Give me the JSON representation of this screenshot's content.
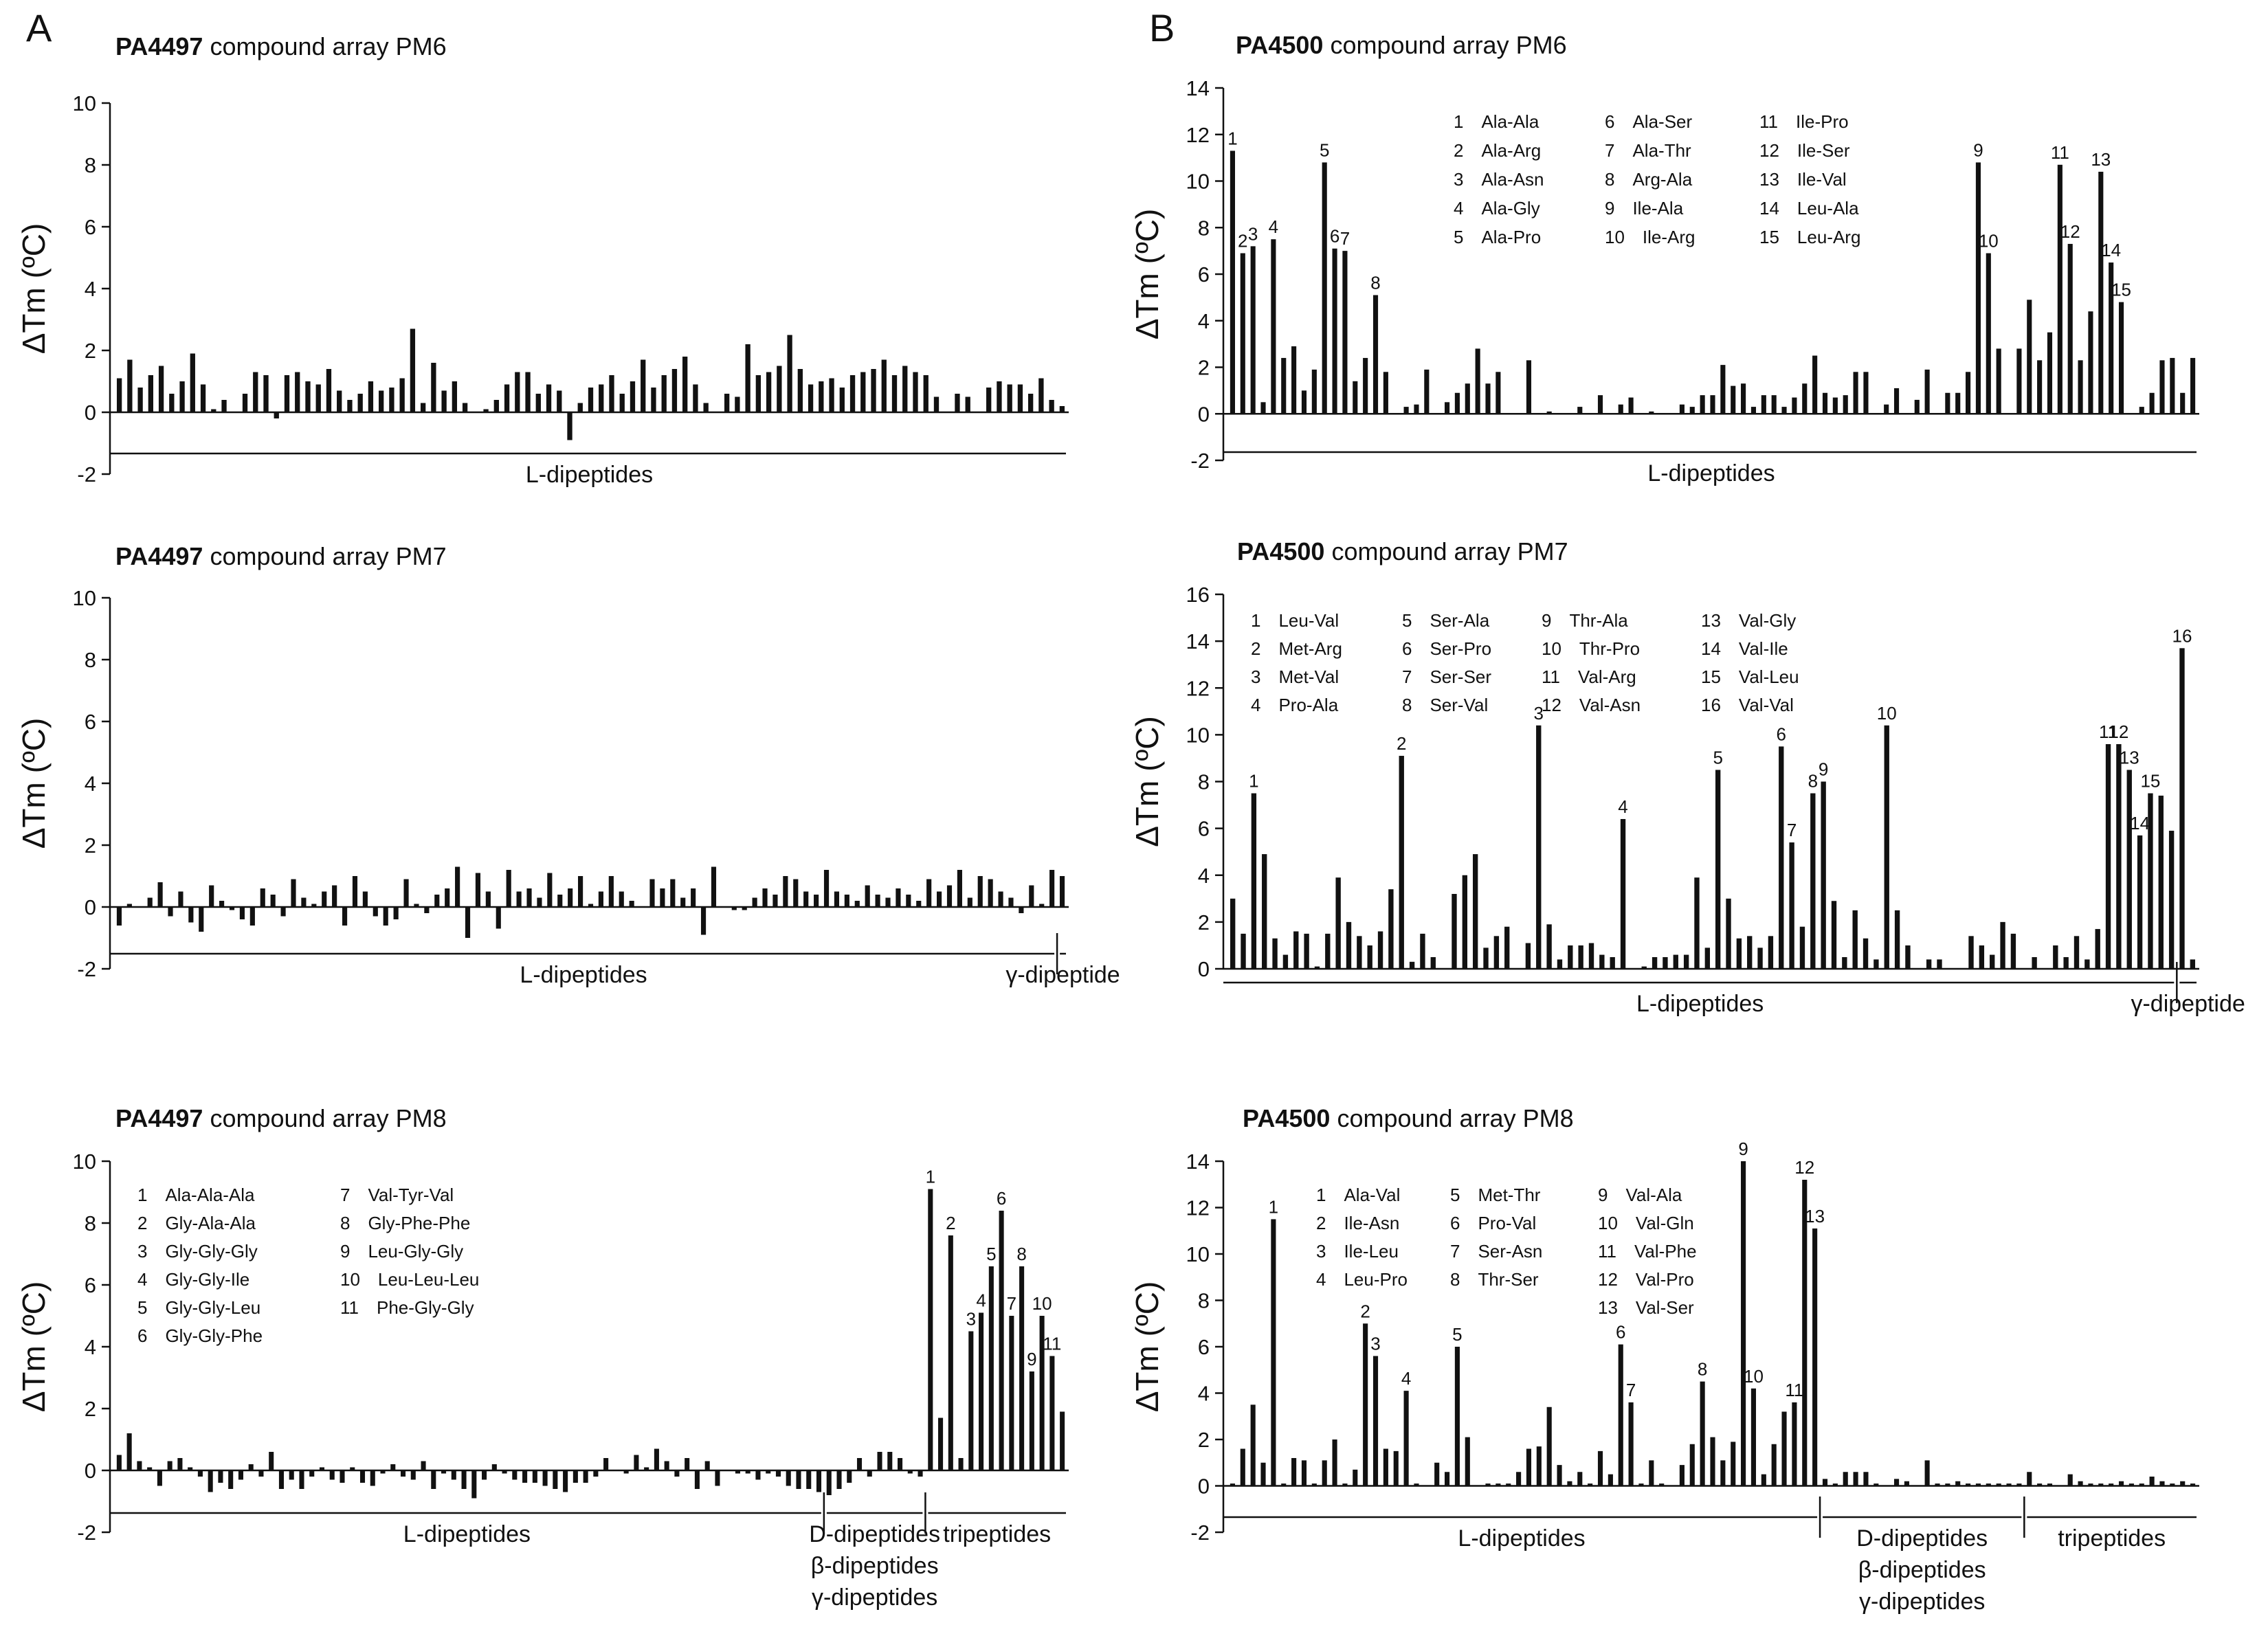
{
  "panel_labels": [
    "A",
    "B"
  ],
  "chart_data": [
    {
      "id": "A-PM6",
      "type": "bar",
      "title_bold": "PA4497",
      "title_rest": "compound array PM6",
      "ylabel": "ΔTm (ºC)",
      "ylim": [
        -2,
        10
      ],
      "yticks": [
        -2,
        0,
        2,
        4,
        6,
        8,
        10
      ],
      "groups": [
        "L-dipeptides"
      ],
      "peak_labels": [],
      "legend": [],
      "values": [
        1.1,
        1.7,
        0.8,
        1.2,
        1.5,
        0.6,
        1.0,
        1.9,
        0.9,
        0.1,
        0.4,
        0.0,
        0.6,
        1.3,
        1.2,
        -0.2,
        1.2,
        1.3,
        1.0,
        0.9,
        1.4,
        0.7,
        0.4,
        0.6,
        1.0,
        0.7,
        0.8,
        1.1,
        2.7,
        0.3,
        1.6,
        0.7,
        1.0,
        0.3,
        0.0,
        0.1,
        0.4,
        0.9,
        1.3,
        1.3,
        0.6,
        0.9,
        0.7,
        -0.9,
        0.3,
        0.8,
        0.9,
        1.2,
        0.6,
        1.0,
        1.7,
        0.8,
        1.2,
        1.4,
        1.8,
        0.9,
        0.3,
        0.0,
        0.6,
        0.5,
        2.2,
        1.2,
        1.3,
        1.5,
        2.5,
        1.4,
        0.9,
        1.0,
        1.1,
        0.8,
        1.2,
        1.3,
        1.4,
        1.7,
        1.2,
        1.5,
        1.3,
        1.2,
        0.5,
        0.0,
        0.6,
        0.5,
        0.0,
        0.8,
        1.0,
        0.9,
        0.9,
        0.6,
        1.1,
        0.4,
        0.2
      ]
    },
    {
      "id": "A-PM7",
      "type": "bar",
      "title_bold": "PA4497",
      "title_rest": "compound array PM7",
      "ylabel": "ΔTm (ºC)",
      "ylim": [
        -2,
        10
      ],
      "yticks": [
        -2,
        0,
        2,
        4,
        6,
        8,
        10
      ],
      "groups": [
        "L-dipeptides",
        "γ-dipeptide"
      ],
      "peak_labels": [],
      "legend": [],
      "values": [
        -0.6,
        0.1,
        0.0,
        0.3,
        0.8,
        -0.3,
        0.5,
        -0.5,
        -0.8,
        0.7,
        0.2,
        -0.1,
        -0.4,
        -0.6,
        0.6,
        0.4,
        -0.3,
        0.9,
        0.3,
        0.1,
        0.5,
        0.7,
        -0.6,
        1.0,
        0.5,
        -0.3,
        -0.6,
        -0.4,
        0.9,
        0.1,
        -0.2,
        0.4,
        0.6,
        1.3,
        -1.0,
        1.1,
        0.5,
        -0.7,
        1.2,
        0.5,
        0.6,
        0.3,
        1.1,
        0.4,
        0.6,
        1.0,
        0.1,
        0.5,
        1.0,
        0.5,
        0.2,
        0.0,
        0.9,
        0.6,
        0.9,
        0.3,
        0.6,
        -0.9,
        1.3,
        0.0,
        -0.1,
        -0.1,
        0.3,
        0.6,
        0.4,
        1.0,
        0.9,
        0.5,
        0.4,
        1.2,
        0.5,
        0.4,
        0.2,
        0.7,
        0.4,
        0.3,
        0.6,
        0.4,
        0.2,
        0.9,
        0.5,
        0.7,
        1.2,
        0.3,
        1.0,
        0.9,
        0.5,
        0.3,
        -0.2,
        0.7,
        0.1,
        1.2,
        1.0
      ]
    },
    {
      "id": "A-PM8",
      "type": "bar",
      "title_bold": "PA4497",
      "title_rest": "compound array PM8",
      "ylabel": "ΔTm (ºC)",
      "ylim": [
        -2,
        10
      ],
      "yticks": [
        -2,
        0,
        2,
        4,
        6,
        8,
        10
      ],
      "groups": [
        "L-dipeptides",
        "D-dipeptides",
        "β-dipeptides",
        "γ-dipeptides",
        "tripeptides"
      ],
      "peak_labels": [
        "1",
        "2",
        "3",
        "4",
        "5",
        "6",
        "7",
        "8",
        "9",
        "10",
        "11"
      ],
      "legend": [
        "1  Ala-Ala-Ala",
        "2  Gly-Ala-Ala",
        "3  Gly-Gly-Gly",
        "4  Gly-Gly-Ile",
        "5  Gly-Gly-Leu",
        "6  Gly-Gly-Phe",
        "7  Val-Tyr-Val",
        "8  Gly-Phe-Phe",
        "9  Leu-Gly-Gly",
        "10  Leu-Leu-Leu",
        "11  Phe-Gly-Gly"
      ],
      "values": [
        0.5,
        1.2,
        0.3,
        0.1,
        -0.5,
        0.3,
        0.4,
        0.1,
        -0.2,
        -0.7,
        -0.4,
        -0.6,
        -0.3,
        0.2,
        -0.2,
        0.6,
        -0.6,
        -0.3,
        -0.6,
        -0.2,
        0.1,
        -0.3,
        -0.4,
        0.1,
        -0.4,
        -0.5,
        -0.1,
        0.2,
        -0.2,
        -0.3,
        0.3,
        -0.6,
        -0.1,
        -0.3,
        -0.6,
        -0.9,
        -0.3,
        0.2,
        -0.1,
        -0.3,
        -0.4,
        -0.4,
        -0.5,
        -0.6,
        -0.7,
        -0.4,
        -0.4,
        -0.2,
        0.4,
        0.0,
        -0.1,
        0.5,
        0.1,
        0.7,
        0.3,
        -0.2,
        0.4,
        -0.6,
        0.3,
        -0.5,
        0.0,
        -0.1,
        -0.1,
        -0.3,
        -0.1,
        -0.2,
        -0.5,
        -0.6,
        -0.6,
        -0.7,
        -0.8,
        -0.6,
        -0.4,
        0.4,
        -0.2,
        0.6,
        0.6,
        0.4,
        -0.1,
        -0.2,
        9.1,
        1.7,
        7.6,
        0.4,
        4.5,
        5.1,
        6.6,
        8.4,
        5.0,
        6.6,
        3.2,
        5.0,
        3.7,
        1.9
      ]
    },
    {
      "id": "B-PM6",
      "type": "bar",
      "title_bold": "PA4500",
      "title_rest": "compound array PM6",
      "ylabel": "ΔTm (ºC)",
      "ylim": [
        -2,
        14
      ],
      "yticks": [
        -2,
        0,
        2,
        4,
        6,
        8,
        10,
        12,
        14
      ],
      "groups": [
        "L-dipeptides"
      ],
      "peak_labels": [
        "1",
        "2",
        "3",
        "4",
        "5",
        "6",
        "7",
        "8",
        "9",
        "10",
        "11",
        "12",
        "13",
        "14",
        "15"
      ],
      "legend": [
        "1  Ala-Ala",
        "2  Ala-Arg",
        "3  Ala-Asn",
        "4  Ala-Gly",
        "5  Ala-Pro",
        "6  Ala-Ser",
        "7  Ala-Thr",
        "8  Arg-Ala",
        "9  Ile-Ala",
        "10  Ile-Arg",
        "11  Ile-Pro",
        "12  Ile-Ser",
        "13  Ile-Val",
        "14  Leu-Ala",
        "15  Leu-Arg"
      ],
      "values": [
        11.3,
        6.9,
        7.2,
        0.5,
        7.5,
        2.4,
        2.9,
        1.0,
        1.9,
        10.8,
        7.1,
        7.0,
        1.4,
        2.4,
        5.1,
        1.8,
        0.0,
        0.3,
        0.4,
        1.9,
        0.0,
        0.5,
        0.9,
        1.3,
        2.8,
        1.3,
        1.8,
        0.0,
        0.0,
        2.3,
        0.0,
        0.1,
        0.0,
        0.0,
        0.3,
        0.0,
        0.8,
        0.0,
        0.4,
        0.7,
        0.0,
        0.1,
        0.0,
        0.0,
        0.4,
        0.3,
        0.8,
        0.8,
        2.1,
        1.2,
        1.3,
        0.3,
        0.8,
        0.8,
        0.3,
        0.7,
        1.3,
        2.5,
        0.9,
        0.7,
        0.8,
        1.8,
        1.8,
        0.0,
        0.4,
        1.1,
        0.0,
        0.6,
        1.9,
        0.0,
        0.9,
        0.9,
        1.8,
        10.8,
        6.9,
        2.8,
        0.0,
        2.8,
        4.9,
        2.3,
        3.5,
        10.7,
        7.3,
        2.3,
        4.4,
        10.4,
        6.5,
        4.8,
        0.0,
        0.3,
        0.9,
        2.3,
        2.4,
        0.9,
        2.4
      ]
    },
    {
      "id": "B-PM7",
      "type": "bar",
      "title_bold": "PA4500",
      "title_rest": "compound array PM7",
      "ylabel": "ΔTm (ºC)",
      "ylim": [
        0,
        16
      ],
      "yticks": [
        0,
        2,
        4,
        6,
        8,
        10,
        12,
        14,
        16
      ],
      "groups": [
        "L-dipeptides",
        "γ-dipeptide"
      ],
      "peak_labels": [
        "1",
        "2",
        "3",
        "4",
        "5",
        "6",
        "7",
        "8",
        "9",
        "10",
        "11",
        "12",
        "13",
        "14",
        "15",
        "16"
      ],
      "legend": [
        "1  Leu-Val",
        "2  Met-Arg",
        "3  Met-Val",
        "4  Pro-Ala",
        "5  Ser-Ala",
        "6  Ser-Pro",
        "7  Ser-Ser",
        "8  Ser-Val",
        "9  Thr-Ala",
        "10  Thr-Pro",
        "11  Val-Arg",
        "12  Val-Asn",
        "13  Val-Gly",
        "14  Val-Ile",
        "15  Val-Leu",
        "16  Val-Val"
      ],
      "values": [
        3.0,
        1.5,
        7.5,
        4.9,
        1.3,
        0.6,
        1.6,
        1.5,
        0.1,
        1.5,
        3.9,
        2.0,
        1.4,
        1.0,
        1.6,
        3.4,
        9.1,
        0.3,
        1.5,
        0.5,
        0.0,
        3.2,
        4.0,
        4.9,
        0.9,
        1.4,
        1.8,
        0.0,
        1.1,
        10.4,
        1.9,
        0.4,
        1.0,
        1.0,
        1.1,
        0.6,
        0.5,
        6.4,
        0.0,
        0.1,
        0.5,
        0.5,
        0.6,
        0.6,
        3.9,
        0.9,
        8.5,
        3.0,
        1.3,
        1.4,
        0.9,
        1.4,
        9.5,
        5.4,
        1.8,
        7.5,
        8.0,
        2.9,
        0.5,
        2.5,
        1.3,
        0.4,
        10.4,
        2.5,
        1.0,
        0.0,
        0.4,
        0.4,
        0.0,
        0.0,
        1.4,
        1.0,
        0.6,
        2.0,
        1.5,
        0.0,
        0.5,
        0.0,
        1.0,
        0.5,
        1.4,
        0.4,
        1.7,
        9.6,
        9.6,
        8.5,
        5.7,
        7.5,
        7.4,
        5.9,
        13.7,
        0.4
      ]
    },
    {
      "id": "B-PM8",
      "type": "bar",
      "title_bold": "PA4500",
      "title_rest": "compound array PM8",
      "ylabel": "ΔTm (ºC)",
      "ylim": [
        -2,
        14
      ],
      "yticks": [
        -2,
        0,
        2,
        4,
        6,
        8,
        10,
        12,
        14
      ],
      "groups": [
        "L-dipeptides",
        "D-dipeptides",
        "β-dipeptides",
        "γ-dipeptides",
        "tripeptides"
      ],
      "peak_labels": [
        "1",
        "2",
        "3",
        "4",
        "5",
        "6",
        "7",
        "8",
        "9",
        "10",
        "11",
        "12",
        "13"
      ],
      "legend": [
        "1  Ala-Val",
        "2  Ile-Asn",
        "3  Ile-Leu",
        "4  Leu-Pro",
        "5  Met-Thr",
        "6  Pro-Val",
        "7  Ser-Asn",
        "8  Thr-Ser",
        "9  Val-Ala",
        "10  Val-Gln",
        "11  Val-Phe",
        "12  Val-Pro",
        "13  Val-Ser"
      ],
      "values": [
        0.1,
        1.6,
        3.5,
        1.0,
        11.5,
        0.1,
        1.2,
        1.1,
        0.1,
        1.1,
        2.0,
        0.1,
        0.7,
        7.0,
        5.6,
        1.6,
        1.5,
        4.1,
        0.1,
        0.0,
        1.0,
        0.6,
        6.0,
        2.1,
        0.0,
        0.1,
        0.1,
        0.1,
        0.6,
        1.6,
        1.7,
        3.4,
        0.9,
        0.2,
        0.6,
        0.1,
        1.5,
        0.5,
        6.1,
        3.6,
        0.1,
        1.1,
        0.1,
        0.0,
        0.9,
        1.8,
        4.5,
        2.1,
        1.1,
        1.9,
        14.0,
        4.2,
        0.5,
        1.8,
        3.2,
        3.6,
        13.2,
        11.1,
        0.3,
        0.1,
        0.6,
        0.6,
        0.6,
        0.1,
        0.0,
        0.3,
        0.2,
        0.0,
        1.1,
        0.1,
        0.1,
        0.2,
        0.1,
        0.1,
        0.1,
        0.1,
        0.1,
        0.1,
        0.6,
        0.1,
        0.1,
        0.0,
        0.5,
        0.2,
        0.1,
        0.1,
        0.1,
        0.2,
        0.1,
        0.1,
        0.4,
        0.2,
        0.1,
        0.2,
        0.1
      ]
    }
  ]
}
